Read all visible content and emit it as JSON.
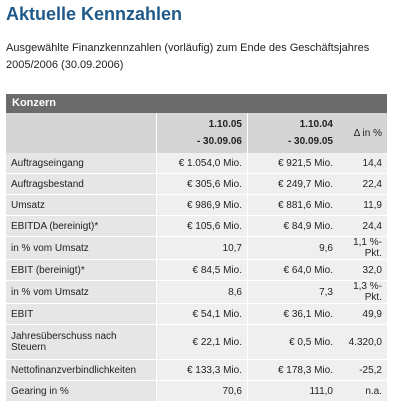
{
  "title": "Aktuelle Kennzahlen",
  "subtitle": "Ausgewählte Finanzkennzahlen (vorläufig) zum Ende des Geschäftsjahres 2005/2006 (30.09.2006)",
  "table": {
    "section_label": "Konzern",
    "columns": [
      {
        "line1": "1.10.05",
        "line2": "- 30.09.06"
      },
      {
        "line1": "1.10.04",
        "line2": "- 30.09.05"
      },
      {
        "line1": "Δ in %",
        "line2": ""
      }
    ],
    "rows": [
      {
        "label": "Auftragseingang",
        "v1": "€ 1.054,0 Mio.",
        "v2": "€ 921,5 Mio.",
        "v3": "14,4"
      },
      {
        "label": "Auftragsbestand",
        "v1": "€ 305,6 Mio.",
        "v2": "€ 249,7 Mio.",
        "v3": "22,4"
      },
      {
        "label": "Umsatz",
        "v1": "€ 986,9 Mio.",
        "v2": "€ 881,6 Mio.",
        "v3": "11,9"
      },
      {
        "label": "EBITDA (bereinigt)*",
        "v1": "€ 105,6 Mio.",
        "v2": "€ 84,9 Mio.",
        "v3": "24,4"
      },
      {
        "label": "in % vom Umsatz",
        "v1": "10,7",
        "v2": "9,6",
        "v3": "1,1 %-Pkt."
      },
      {
        "label": "EBIT (bereinigt)*",
        "v1": "€ 84,5 Mio.",
        "v2": "€ 64,0 Mio.",
        "v3": "32,0"
      },
      {
        "label": "in % vom Umsatz",
        "v1": "8,6",
        "v2": "7,3",
        "v3": "1,3 %-Pkt."
      },
      {
        "label": "EBIT",
        "v1": "€ 54,1 Mio.",
        "v2": "€ 36,1 Mio.",
        "v3": "49,9"
      },
      {
        "label": "Jahresüberschuss nach Steuern",
        "v1": "€ 22,1 Mio.",
        "v2": "€ 0,5 Mio.",
        "v3": "4.320,0"
      },
      {
        "label": "Nettofinanzverbindlichkeiten",
        "v1": "€ 133,3 Mio.",
        "v2": "€ 178,3 Mio.",
        "v3": "-25,2"
      },
      {
        "label": "Gearing in %",
        "v1": "70,6",
        "v2": "111,0",
        "v3": "n.a."
      }
    ]
  }
}
